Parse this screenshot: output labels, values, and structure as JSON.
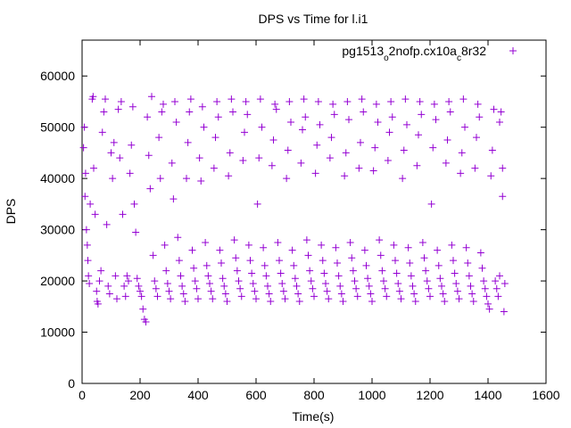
{
  "chart_data": {
    "type": "scatter",
    "title": "DPS vs Time for l.i1",
    "xlabel": "Time(s)",
    "ylabel": "DPS",
    "xlim": [
      0,
      1600
    ],
    "ylim": [
      0,
      67000
    ],
    "xticks": [
      0,
      200,
      400,
      600,
      800,
      1000,
      1200,
      1400,
      1600
    ],
    "yticks": [
      0,
      10000,
      20000,
      30000,
      40000,
      50000,
      60000
    ],
    "grid": false,
    "legend_position": "top-right",
    "marker": "plus",
    "series": [
      {
        "name": "pg1513_o2nofp.cx10a_c8r32",
        "color": "#9400d3",
        "points": [
          [
            5,
            46000
          ],
          [
            8,
            50000
          ],
          [
            10,
            36500
          ],
          [
            12,
            41000
          ],
          [
            15,
            30000
          ],
          [
            18,
            27000
          ],
          [
            20,
            24000
          ],
          [
            22,
            21000
          ],
          [
            25,
            19500
          ],
          [
            28,
            35000
          ],
          [
            35,
            55500
          ],
          [
            38,
            56000
          ],
          [
            40,
            42000
          ],
          [
            45,
            33000
          ],
          [
            50,
            18000
          ],
          [
            52,
            16000
          ],
          [
            55,
            15500
          ],
          [
            60,
            20000
          ],
          [
            65,
            22000
          ],
          [
            70,
            49000
          ],
          [
            75,
            53000
          ],
          [
            80,
            55500
          ],
          [
            85,
            31000
          ],
          [
            90,
            19000
          ],
          [
            95,
            17500
          ],
          [
            100,
            45000
          ],
          [
            105,
            40000
          ],
          [
            110,
            47000
          ],
          [
            115,
            21000
          ],
          [
            120,
            16500
          ],
          [
            125,
            53500
          ],
          [
            130,
            44000
          ],
          [
            135,
            55000
          ],
          [
            140,
            33000
          ],
          [
            145,
            19000
          ],
          [
            150,
            17000
          ],
          [
            155,
            21000
          ],
          [
            160,
            20000
          ],
          [
            165,
            41000
          ],
          [
            170,
            46500
          ],
          [
            175,
            54000
          ],
          [
            180,
            35000
          ],
          [
            185,
            29500
          ],
          [
            190,
            20500
          ],
          [
            195,
            19000
          ],
          [
            200,
            18000
          ],
          [
            205,
            17000
          ],
          [
            210,
            14500
          ],
          [
            215,
            12500
          ],
          [
            220,
            12000
          ],
          [
            225,
            52000
          ],
          [
            230,
            44500
          ],
          [
            235,
            38000
          ],
          [
            240,
            56000
          ],
          [
            245,
            25000
          ],
          [
            250,
            20000
          ],
          [
            255,
            18500
          ],
          [
            260,
            17000
          ],
          [
            265,
            48000
          ],
          [
            270,
            40000
          ],
          [
            275,
            53000
          ],
          [
            280,
            54500
          ],
          [
            285,
            27000
          ],
          [
            290,
            22000
          ],
          [
            295,
            19500
          ],
          [
            300,
            18000
          ],
          [
            305,
            16500
          ],
          [
            310,
            43000
          ],
          [
            315,
            36000
          ],
          [
            320,
            55000
          ],
          [
            325,
            51000
          ],
          [
            330,
            28500
          ],
          [
            335,
            24000
          ],
          [
            340,
            21000
          ],
          [
            345,
            19000
          ],
          [
            350,
            17500
          ],
          [
            355,
            16000
          ],
          [
            360,
            40000
          ],
          [
            365,
            47000
          ],
          [
            370,
            53000
          ],
          [
            375,
            55500
          ],
          [
            380,
            26000
          ],
          [
            385,
            22500
          ],
          [
            390,
            20000
          ],
          [
            395,
            18500
          ],
          [
            400,
            16500
          ],
          [
            405,
            44000
          ],
          [
            410,
            39500
          ],
          [
            415,
            54000
          ],
          [
            420,
            50000
          ],
          [
            425,
            27500
          ],
          [
            430,
            23000
          ],
          [
            435,
            21000
          ],
          [
            440,
            19500
          ],
          [
            445,
            18000
          ],
          [
            450,
            16500
          ],
          [
            455,
            42000
          ],
          [
            460,
            48000
          ],
          [
            465,
            55000
          ],
          [
            470,
            52000
          ],
          [
            475,
            26000
          ],
          [
            480,
            23500
          ],
          [
            485,
            20500
          ],
          [
            490,
            19000
          ],
          [
            495,
            17500
          ],
          [
            500,
            16000
          ],
          [
            505,
            40500
          ],
          [
            510,
            45000
          ],
          [
            515,
            55500
          ],
          [
            520,
            53000
          ],
          [
            525,
            28000
          ],
          [
            530,
            24500
          ],
          [
            535,
            22000
          ],
          [
            540,
            20000
          ],
          [
            545,
            18500
          ],
          [
            550,
            17000
          ],
          [
            555,
            43500
          ],
          [
            560,
            49000
          ],
          [
            565,
            55000
          ],
          [
            570,
            52500
          ],
          [
            575,
            27000
          ],
          [
            580,
            24000
          ],
          [
            585,
            21500
          ],
          [
            590,
            19500
          ],
          [
            595,
            18000
          ],
          [
            600,
            16500
          ],
          [
            605,
            35000
          ],
          [
            610,
            44000
          ],
          [
            615,
            55500
          ],
          [
            620,
            50000
          ],
          [
            625,
            26500
          ],
          [
            630,
            23000
          ],
          [
            635,
            21000
          ],
          [
            640,
            19000
          ],
          [
            645,
            17500
          ],
          [
            650,
            16000
          ],
          [
            655,
            42500
          ],
          [
            660,
            47500
          ],
          [
            665,
            54500
          ],
          [
            670,
            53500
          ],
          [
            675,
            27500
          ],
          [
            680,
            24000
          ],
          [
            685,
            21500
          ],
          [
            690,
            19500
          ],
          [
            695,
            18000
          ],
          [
            700,
            16500
          ],
          [
            705,
            40000
          ],
          [
            710,
            45500
          ],
          [
            715,
            55000
          ],
          [
            720,
            51000
          ],
          [
            725,
            26000
          ],
          [
            730,
            23000
          ],
          [
            735,
            20500
          ],
          [
            740,
            19000
          ],
          [
            745,
            17500
          ],
          [
            750,
            16000
          ],
          [
            755,
            43000
          ],
          [
            760,
            49500
          ],
          [
            765,
            55500
          ],
          [
            770,
            52000
          ],
          [
            775,
            28000
          ],
          [
            780,
            25000
          ],
          [
            785,
            22000
          ],
          [
            790,
            20000
          ],
          [
            795,
            18500
          ],
          [
            800,
            17000
          ],
          [
            805,
            41000
          ],
          [
            810,
            46500
          ],
          [
            815,
            55000
          ],
          [
            820,
            50500
          ],
          [
            825,
            27000
          ],
          [
            830,
            24000
          ],
          [
            835,
            21500
          ],
          [
            840,
            19500
          ],
          [
            845,
            18000
          ],
          [
            850,
            16500
          ],
          [
            855,
            44000
          ],
          [
            860,
            48000
          ],
          [
            865,
            54500
          ],
          [
            870,
            52500
          ],
          [
            875,
            26500
          ],
          [
            880,
            23500
          ],
          [
            885,
            21000
          ],
          [
            890,
            19000
          ],
          [
            895,
            17500
          ],
          [
            900,
            16000
          ],
          [
            905,
            40500
          ],
          [
            910,
            45000
          ],
          [
            915,
            55000
          ],
          [
            920,
            51500
          ],
          [
            925,
            27500
          ],
          [
            930,
            24500
          ],
          [
            935,
            22000
          ],
          [
            940,
            20000
          ],
          [
            945,
            18500
          ],
          [
            950,
            17000
          ],
          [
            955,
            42000
          ],
          [
            960,
            47000
          ],
          [
            965,
            55500
          ],
          [
            970,
            53000
          ],
          [
            975,
            26000
          ],
          [
            980,
            23000
          ],
          [
            985,
            20500
          ],
          [
            990,
            19000
          ],
          [
            995,
            17500
          ],
          [
            1000,
            16000
          ],
          [
            1005,
            41500
          ],
          [
            1010,
            46000
          ],
          [
            1015,
            54500
          ],
          [
            1020,
            51000
          ],
          [
            1025,
            28000
          ],
          [
            1030,
            25000
          ],
          [
            1035,
            22000
          ],
          [
            1040,
            20000
          ],
          [
            1045,
            18500
          ],
          [
            1050,
            17000
          ],
          [
            1055,
            43500
          ],
          [
            1060,
            49000
          ],
          [
            1065,
            55000
          ],
          [
            1070,
            52000
          ],
          [
            1075,
            27000
          ],
          [
            1080,
            24000
          ],
          [
            1085,
            21500
          ],
          [
            1090,
            19500
          ],
          [
            1095,
            18000
          ],
          [
            1100,
            16500
          ],
          [
            1105,
            40000
          ],
          [
            1110,
            45500
          ],
          [
            1115,
            55500
          ],
          [
            1120,
            50500
          ],
          [
            1125,
            26500
          ],
          [
            1130,
            23500
          ],
          [
            1135,
            21000
          ],
          [
            1140,
            19000
          ],
          [
            1145,
            17500
          ],
          [
            1150,
            16000
          ],
          [
            1155,
            42500
          ],
          [
            1160,
            48500
          ],
          [
            1165,
            55000
          ],
          [
            1170,
            52500
          ],
          [
            1175,
            27500
          ],
          [
            1180,
            24500
          ],
          [
            1185,
            22000
          ],
          [
            1190,
            20000
          ],
          [
            1195,
            18500
          ],
          [
            1200,
            17000
          ],
          [
            1205,
            35000
          ],
          [
            1210,
            46000
          ],
          [
            1215,
            54500
          ],
          [
            1220,
            51500
          ],
          [
            1225,
            26000
          ],
          [
            1230,
            23000
          ],
          [
            1235,
            20500
          ],
          [
            1240,
            19000
          ],
          [
            1245,
            17500
          ],
          [
            1250,
            16000
          ],
          [
            1255,
            43000
          ],
          [
            1260,
            47500
          ],
          [
            1265,
            55000
          ],
          [
            1270,
            53000
          ],
          [
            1275,
            27000
          ],
          [
            1280,
            24000
          ],
          [
            1285,
            21500
          ],
          [
            1290,
            19500
          ],
          [
            1295,
            18000
          ],
          [
            1300,
            16500
          ],
          [
            1305,
            41000
          ],
          [
            1310,
            45000
          ],
          [
            1315,
            55500
          ],
          [
            1320,
            50000
          ],
          [
            1325,
            26500
          ],
          [
            1330,
            23500
          ],
          [
            1335,
            21000
          ],
          [
            1340,
            19000
          ],
          [
            1345,
            17500
          ],
          [
            1350,
            16000
          ],
          [
            1355,
            42000
          ],
          [
            1360,
            48000
          ],
          [
            1365,
            54500
          ],
          [
            1370,
            52000
          ],
          [
            1375,
            25500
          ],
          [
            1380,
            22500
          ],
          [
            1385,
            20000
          ],
          [
            1390,
            18500
          ],
          [
            1395,
            17000
          ],
          [
            1400,
            15500
          ],
          [
            1405,
            14500
          ],
          [
            1410,
            40500
          ],
          [
            1415,
            45500
          ],
          [
            1420,
            53500
          ],
          [
            1425,
            20000
          ],
          [
            1430,
            18500
          ],
          [
            1435,
            17000
          ],
          [
            1440,
            21000
          ],
          [
            1445,
            53000
          ],
          [
            1450,
            36500
          ],
          [
            1455,
            14000
          ],
          [
            1458,
            19500
          ],
          [
            1450,
            42000
          ],
          [
            1440,
            51000
          ]
        ]
      }
    ]
  }
}
